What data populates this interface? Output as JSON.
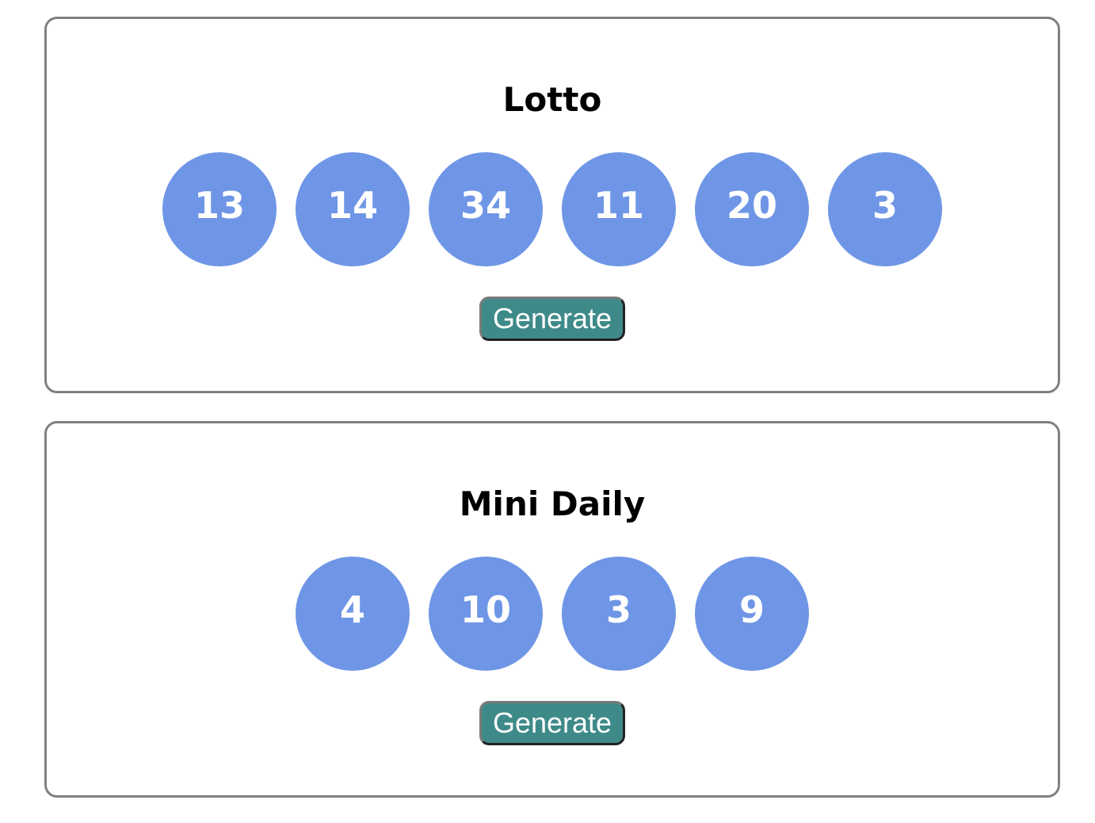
{
  "lotto": {
    "title": "Lotto",
    "numbers": [
      "13",
      "14",
      "34",
      "11",
      "20",
      "3"
    ],
    "button_label": "Generate"
  },
  "mini_daily": {
    "title": "Mini Daily",
    "numbers": [
      "4",
      "10",
      "3",
      "9"
    ],
    "button_label": "Generate"
  },
  "colors": {
    "ball": "#6f96e6",
    "button": "#3e8a89",
    "card_border": "#808080"
  }
}
